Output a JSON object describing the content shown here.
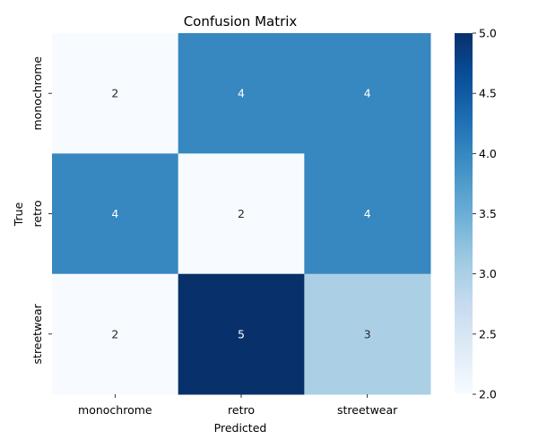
{
  "chart_data": {
    "type": "heatmap",
    "title": "Confusion Matrix",
    "xlabel": "Predicted",
    "ylabel": "True",
    "x_categories": [
      "monochrome",
      "retro",
      "streetwear"
    ],
    "y_categories": [
      "monochrome",
      "retro",
      "streetwear"
    ],
    "values": [
      [
        2,
        4,
        4
      ],
      [
        4,
        2,
        4
      ],
      [
        2,
        5,
        3
      ]
    ],
    "colormap": "Blues",
    "vmin": 2.0,
    "vmax": 5.0,
    "colorbar_ticks": [
      "2.0",
      "2.5",
      "3.0",
      "3.5",
      "4.0",
      "4.5",
      "5.0"
    ],
    "colors": {
      "low": "#f7fbff",
      "high": "#08306b",
      "annotation_on_light": "#262626",
      "annotation_on_dark": "#ffffff"
    },
    "grid": false
  }
}
